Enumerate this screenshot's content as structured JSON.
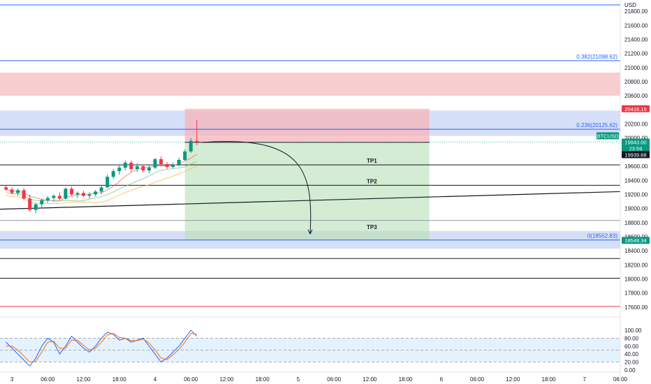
{
  "chart_data": {
    "type": "candlestick",
    "symbol": "BTCUSD",
    "currency": "USD",
    "price_axis": {
      "ticks": [
        21800,
        21600,
        21400,
        21200,
        21000,
        20800,
        20600,
        20400,
        20200,
        20000,
        19800,
        19600,
        19400,
        19200,
        19000,
        18800,
        18600,
        18400,
        18200,
        18000,
        17800,
        17600
      ],
      "tick_labels": [
        "21800.00",
        "21600.00",
        "21400.00",
        "21200.00",
        "21000.00",
        "20800.00",
        "20600.00",
        "20400.00",
        "20200.00",
        "20000.00",
        "19800.00",
        "19600.00",
        "19400.00",
        "19200.00",
        "19000.00",
        "18800.00",
        "18600.00",
        "18400.00",
        "18200.00",
        "18000.00",
        "17800.00",
        "17600.00"
      ],
      "range": [
        17450,
        21960
      ]
    },
    "time_axis": {
      "labels": [
        "3",
        "06:00",
        "12:00",
        "18:00",
        "4",
        "06:00",
        "12:00",
        "18:00",
        "5",
        "06:00",
        "12:00",
        "18:00",
        "6",
        "06:00",
        "12:00",
        "18:00",
        "7",
        "06:00"
      ],
      "range_hours": [
        -2,
        102
      ]
    },
    "price_badges": [
      {
        "label": "20416.15",
        "value": 20416.15,
        "color": "#f23645",
        "text_color": "#ffffff"
      },
      {
        "label": "BTCUSD",
        "value": 19943,
        "color": "#089981",
        "text_color": "#ffffff"
      },
      {
        "label": "19943.00",
        "value": 19943,
        "color": "#089981",
        "text_color": "#ffffff"
      },
      {
        "label": "23:59",
        "value": 19943,
        "color": "#089981",
        "text_color": "#ffffff"
      },
      {
        "label": "19939.68",
        "value": 19939.68,
        "color": "#131722",
        "text_color": "#ffffff"
      },
      {
        "label": "18548.34",
        "value": 18548.34,
        "color": "#089981",
        "text_color": "#ffffff"
      }
    ],
    "fib_levels": [
      {
        "label": "0.382(21098.62)",
        "value": 21098.62,
        "color": "#2962ff"
      },
      {
        "label": "0.236(20125.62)",
        "value": 20125.62,
        "color": "#2962ff"
      },
      {
        "label": "0(18552.83)",
        "value": 18552.83,
        "color": "#2962ff"
      }
    ],
    "top_fib_line": {
      "value": 21890,
      "color": "#2962ff"
    },
    "zones": [
      {
        "name": "supply-zone",
        "low": 20600,
        "high": 20930,
        "color": "#f7c4c8"
      },
      {
        "name": "upper-blue-zone",
        "low": 20030,
        "high": 20390,
        "color": "#cfd9f7"
      },
      {
        "name": "lower-blue-zone",
        "low": 18430,
        "high": 18680,
        "color": "#cfd9f7"
      }
    ],
    "horizontal_levels": [
      {
        "value": 19620,
        "color": "#131722"
      },
      {
        "value": 19330,
        "color": "#131722"
      },
      {
        "value": 18830,
        "color": "#9598a1"
      },
      {
        "value": 18290,
        "color": "#131722"
      },
      {
        "value": 18010,
        "color": "#131722"
      },
      {
        "value": 17610,
        "color": "#f23645"
      }
    ],
    "tp_labels": [
      {
        "label": "TP1",
        "value": 19620
      },
      {
        "label": "TP2",
        "value": 19330
      },
      {
        "label": "TP3",
        "value": 18680
      }
    ],
    "trendline": {
      "start": {
        "hour": -2,
        "price": 18990
      },
      "end": {
        "hour": 102,
        "price": 19240
      }
    },
    "short_position": {
      "entry": 19939.68,
      "stop": 20416.15,
      "target": 18548.34,
      "start_hour": 29,
      "end_hour": 70
    },
    "projection_arrow": {
      "from_hour": 32,
      "from_price": 19939.68,
      "to_hour": 50,
      "to_price": 18640
    },
    "candles": [
      {
        "t": -1,
        "o": 19300,
        "h": 19330,
        "l": 19250,
        "c": 19270
      },
      {
        "t": 0,
        "o": 19270,
        "h": 19300,
        "l": 19200,
        "c": 19220
      },
      {
        "t": 1,
        "o": 19220,
        "h": 19280,
        "l": 19180,
        "c": 19260
      },
      {
        "t": 2,
        "o": 19260,
        "h": 19290,
        "l": 19120,
        "c": 19140
      },
      {
        "t": 3,
        "o": 19140,
        "h": 19200,
        "l": 18950,
        "c": 18980
      },
      {
        "t": 4,
        "o": 18980,
        "h": 19080,
        "l": 18930,
        "c": 19060
      },
      {
        "t": 5,
        "o": 19060,
        "h": 19140,
        "l": 19000,
        "c": 19120
      },
      {
        "t": 6,
        "o": 19120,
        "h": 19180,
        "l": 19080,
        "c": 19150
      },
      {
        "t": 7,
        "o": 19150,
        "h": 19200,
        "l": 19100,
        "c": 19180
      },
      {
        "t": 8,
        "o": 19180,
        "h": 19230,
        "l": 19120,
        "c": 19140
      },
      {
        "t": 9,
        "o": 19140,
        "h": 19300,
        "l": 19130,
        "c": 19280
      },
      {
        "t": 10,
        "o": 19280,
        "h": 19310,
        "l": 19180,
        "c": 19200
      },
      {
        "t": 11,
        "o": 19200,
        "h": 19240,
        "l": 19150,
        "c": 19220
      },
      {
        "t": 12,
        "o": 19220,
        "h": 19250,
        "l": 19160,
        "c": 19180
      },
      {
        "t": 13,
        "o": 19180,
        "h": 19230,
        "l": 19140,
        "c": 19200
      },
      {
        "t": 14,
        "o": 19200,
        "h": 19260,
        "l": 19170,
        "c": 19240
      },
      {
        "t": 15,
        "o": 19240,
        "h": 19320,
        "l": 19200,
        "c": 19300
      },
      {
        "t": 16,
        "o": 19300,
        "h": 19480,
        "l": 19290,
        "c": 19450
      },
      {
        "t": 17,
        "o": 19450,
        "h": 19560,
        "l": 19420,
        "c": 19530
      },
      {
        "t": 18,
        "o": 19530,
        "h": 19620,
        "l": 19480,
        "c": 19580
      },
      {
        "t": 19,
        "o": 19580,
        "h": 19680,
        "l": 19540,
        "c": 19650
      },
      {
        "t": 20,
        "o": 19650,
        "h": 19680,
        "l": 19520,
        "c": 19560
      },
      {
        "t": 21,
        "o": 19560,
        "h": 19640,
        "l": 19520,
        "c": 19600
      },
      {
        "t": 22,
        "o": 19600,
        "h": 19620,
        "l": 19510,
        "c": 19540
      },
      {
        "t": 23,
        "o": 19540,
        "h": 19610,
        "l": 19500,
        "c": 19580
      },
      {
        "t": 24,
        "o": 19580,
        "h": 19720,
        "l": 19560,
        "c": 19700
      },
      {
        "t": 25,
        "o": 19700,
        "h": 19740,
        "l": 19600,
        "c": 19630
      },
      {
        "t": 26,
        "o": 19630,
        "h": 19660,
        "l": 19560,
        "c": 19590
      },
      {
        "t": 27,
        "o": 19590,
        "h": 19650,
        "l": 19570,
        "c": 19620
      },
      {
        "t": 28,
        "o": 19620,
        "h": 19720,
        "l": 19600,
        "c": 19690
      },
      {
        "t": 29,
        "o": 19690,
        "h": 19840,
        "l": 19680,
        "c": 19810
      },
      {
        "t": 30,
        "o": 19810,
        "h": 20000,
        "l": 19790,
        "c": 19960
      },
      {
        "t": 31,
        "o": 19960,
        "h": 20260,
        "l": 19900,
        "c": 19943
      }
    ],
    "rsi_panel": {
      "y_ticks": [
        100,
        80,
        60,
        40,
        20,
        0
      ],
      "tick_labels": [
        "100.00",
        "80.00",
        "60.00",
        "40.00",
        "20.00",
        "0.00"
      ],
      "overbought": 80,
      "oversold": 20,
      "band_color": "#e3f2fd",
      "series": [
        {
          "color": "#2962ff",
          "values": [
            70,
            55,
            40,
            25,
            10,
            30,
            60,
            80,
            70,
            40,
            60,
            85,
            70,
            55,
            45,
            60,
            80,
            95,
            90,
            75,
            80,
            70,
            75,
            80,
            60,
            40,
            20,
            30,
            45,
            60,
            80,
            100,
            85
          ]
        },
        {
          "color": "#ff6d00",
          "values": [
            60,
            60,
            50,
            35,
            20,
            22,
            45,
            70,
            72,
            55,
            55,
            75,
            75,
            62,
            50,
            55,
            70,
            88,
            92,
            82,
            80,
            74,
            74,
            78,
            68,
            50,
            30,
            26,
            38,
            52,
            70,
            92,
            90
          ]
        }
      ]
    }
  }
}
